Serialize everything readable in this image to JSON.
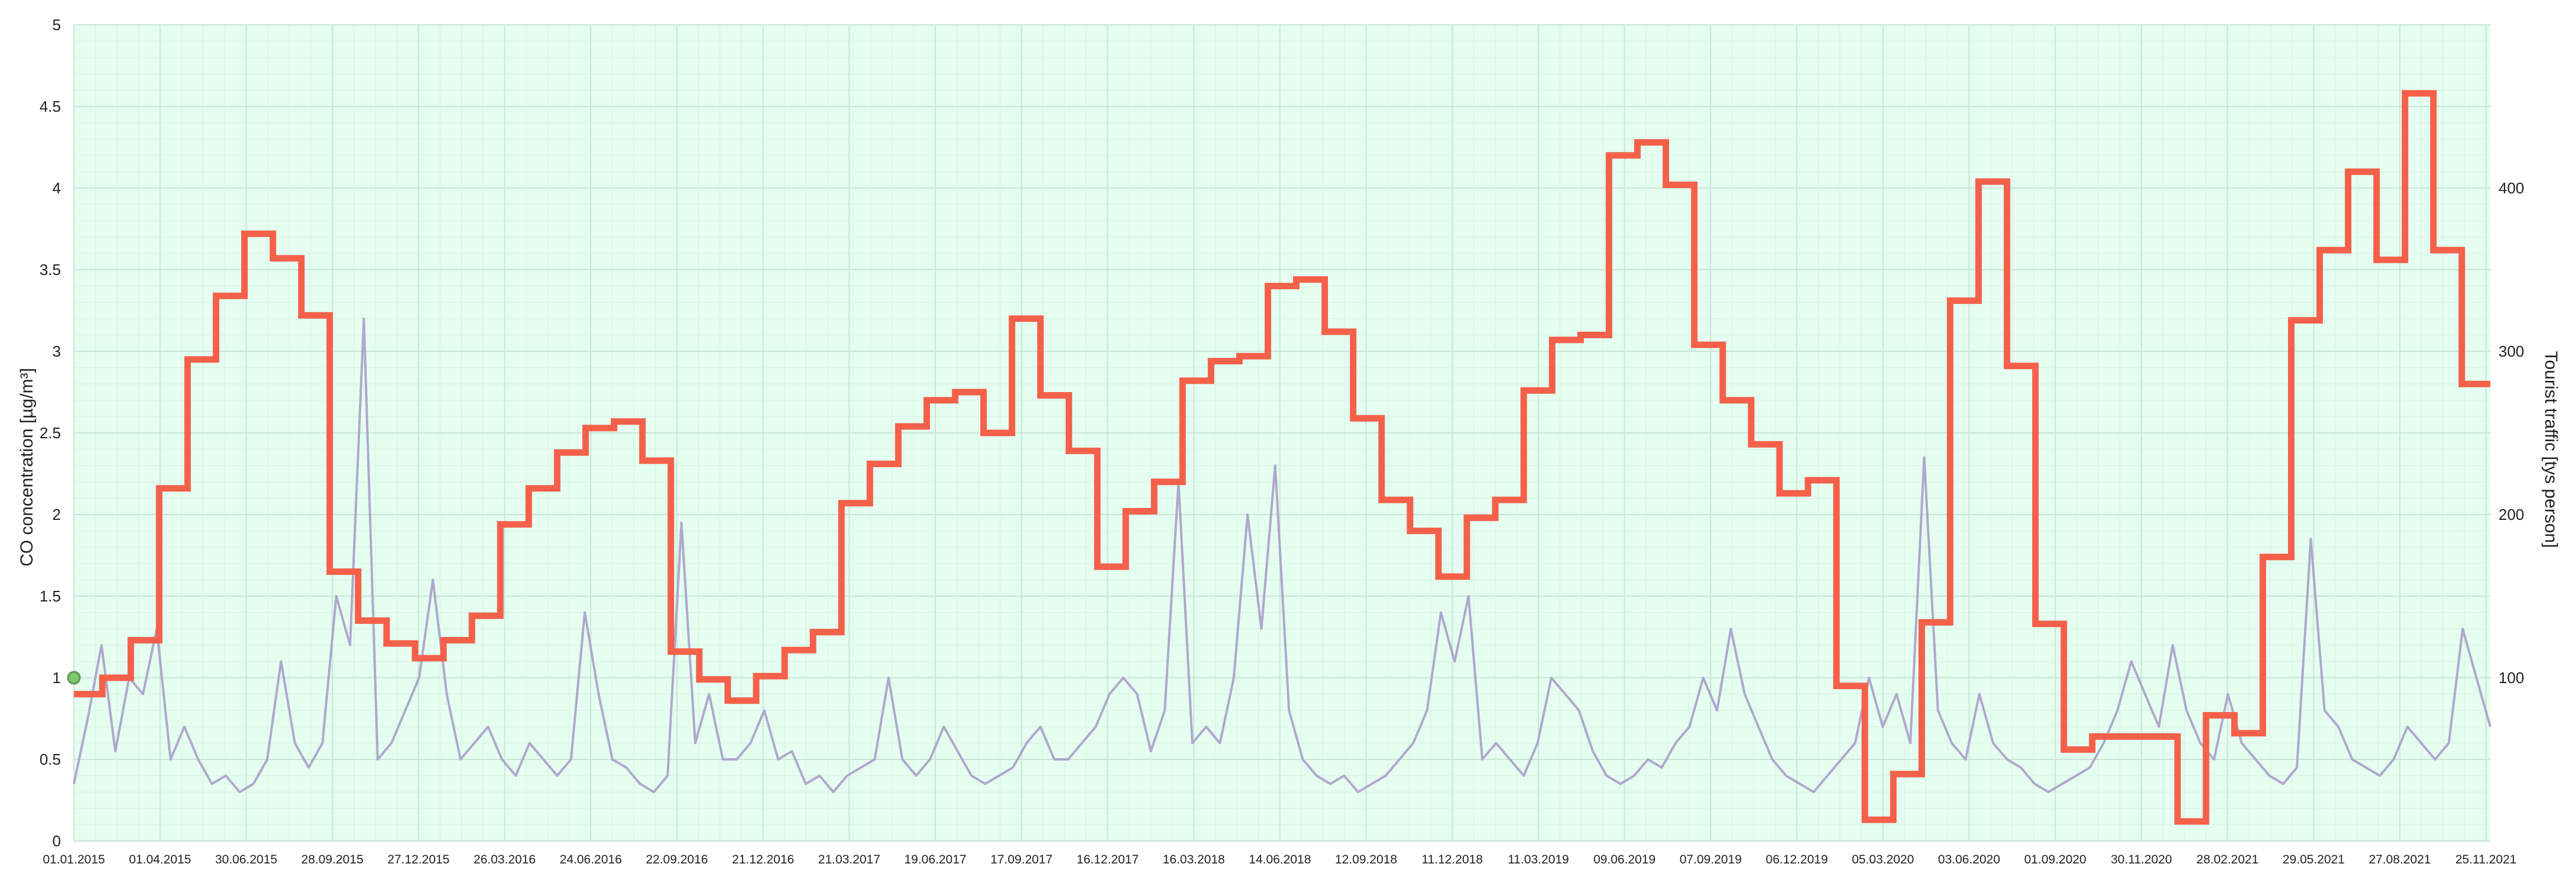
{
  "chart_data": {
    "type": "line",
    "title": "",
    "grid": true,
    "x_ticks": [
      "01.01.2015",
      "01.04.2015",
      "30.06.2015",
      "28.09.2015",
      "27.12.2015",
      "26.03.2016",
      "24.06.2016",
      "22.09.2016",
      "21.12.2016",
      "21.03.2017",
      "19.06.2017",
      "17.09.2017",
      "16.12.2017",
      "16.03.2018",
      "14.06.2018",
      "12.09.2018",
      "11.12.2018",
      "11.03.2019",
      "09.06.2019",
      "07.09.2019",
      "06.12.2019",
      "05.03.2020",
      "03.06.2020",
      "01.09.2020",
      "30.11.2020",
      "28.02.2021",
      "29.05.2021",
      "27.08.2021",
      "25.11.2021"
    ],
    "x_range": [
      "01.01.2015",
      "31.12.2021"
    ],
    "left_axis": {
      "label": "CO concentration [µg/m³]",
      "ylim": [
        0,
        5
      ],
      "ticks": [
        "0",
        "0.5",
        "1",
        "1.5",
        "2",
        "2.5",
        "3",
        "3.5",
        "4",
        "4.5",
        "5"
      ]
    },
    "right_axis": {
      "label": "Tourist traffic [tys person]",
      "ylim": [
        0,
        500
      ],
      "ticks": [
        "100",
        "200",
        "300",
        "400"
      ]
    },
    "series": [
      {
        "axis": "right",
        "style": "step",
        "color": "#f4604a",
        "x_unit": "month",
        "values": [
          90,
          100,
          123,
          216,
          295,
          334,
          372,
          357,
          322,
          165,
          135,
          121,
          112,
          123,
          138,
          194,
          216,
          238,
          253,
          257,
          233,
          116,
          99,
          86,
          101,
          117,
          128,
          207,
          231,
          254,
          270,
          275,
          250,
          320,
          273,
          239,
          168,
          202,
          220,
          282,
          294,
          297,
          340,
          344,
          312,
          259,
          209,
          190,
          162,
          198,
          209,
          276,
          307,
          310,
          420,
          428,
          402,
          304,
          270,
          243,
          213,
          221,
          95,
          13,
          41,
          134,
          331,
          404,
          291,
          133,
          56,
          64,
          64,
          64,
          12,
          77,
          66,
          174,
          319,
          362,
          410,
          356,
          458,
          362,
          280,
          280
        ]
      },
      {
        "axis": "left",
        "style": "line",
        "color": "#a898c8",
        "x_unit": "half-month",
        "values": [
          0.35,
          0.75,
          1.2,
          0.55,
          1.0,
          0.9,
          1.3,
          0.5,
          0.7,
          0.5,
          0.35,
          0.4,
          0.3,
          0.35,
          0.5,
          1.1,
          0.6,
          0.45,
          0.6,
          1.5,
          1.2,
          3.2,
          0.5,
          0.6,
          0.8,
          1.0,
          1.6,
          0.9,
          0.5,
          0.6,
          0.7,
          0.5,
          0.4,
          0.6,
          0.5,
          0.4,
          0.5,
          1.4,
          0.9,
          0.5,
          0.45,
          0.35,
          0.3,
          0.4,
          1.95,
          0.6,
          0.9,
          0.5,
          0.5,
          0.6,
          0.8,
          0.5,
          0.55,
          0.35,
          0.4,
          0.3,
          0.4,
          0.45,
          0.5,
          1.0,
          0.5,
          0.4,
          0.5,
          0.7,
          0.55,
          0.4,
          0.35,
          0.4,
          0.45,
          0.6,
          0.7,
          0.5,
          0.5,
          0.6,
          0.7,
          0.9,
          1.0,
          0.9,
          0.55,
          0.8,
          2.2,
          0.6,
          0.7,
          0.6,
          1.0,
          2.0,
          1.3,
          2.3,
          0.8,
          0.5,
          0.4,
          0.35,
          0.4,
          0.3,
          0.35,
          0.4,
          0.5,
          0.6,
          0.8,
          1.4,
          1.1,
          1.5,
          0.5,
          0.6,
          0.5,
          0.4,
          0.6,
          1.0,
          0.9,
          0.8,
          0.55,
          0.4,
          0.35,
          0.4,
          0.5,
          0.45,
          0.6,
          0.7,
          1.0,
          0.8,
          1.3,
          0.9,
          0.7,
          0.5,
          0.4,
          0.35,
          0.3,
          0.4,
          0.5,
          0.6,
          1.0,
          0.7,
          0.9,
          0.6,
          2.35,
          0.8,
          0.6,
          0.5,
          0.9,
          0.6,
          0.5,
          0.45,
          0.35,
          0.3,
          0.35,
          0.4,
          0.45,
          0.6,
          0.8,
          1.1,
          0.9,
          0.7,
          1.2,
          0.8,
          0.6,
          0.5,
          0.9,
          0.6,
          0.5,
          0.4,
          0.35,
          0.45,
          1.85,
          0.8,
          0.7,
          0.5,
          0.45,
          0.4,
          0.5,
          0.7,
          0.6,
          0.5,
          0.6,
          1.3,
          1.0,
          0.7
        ]
      }
    ],
    "start_marker": {
      "value": 1.0,
      "axis": "left",
      "color": "#7ec870"
    }
  }
}
